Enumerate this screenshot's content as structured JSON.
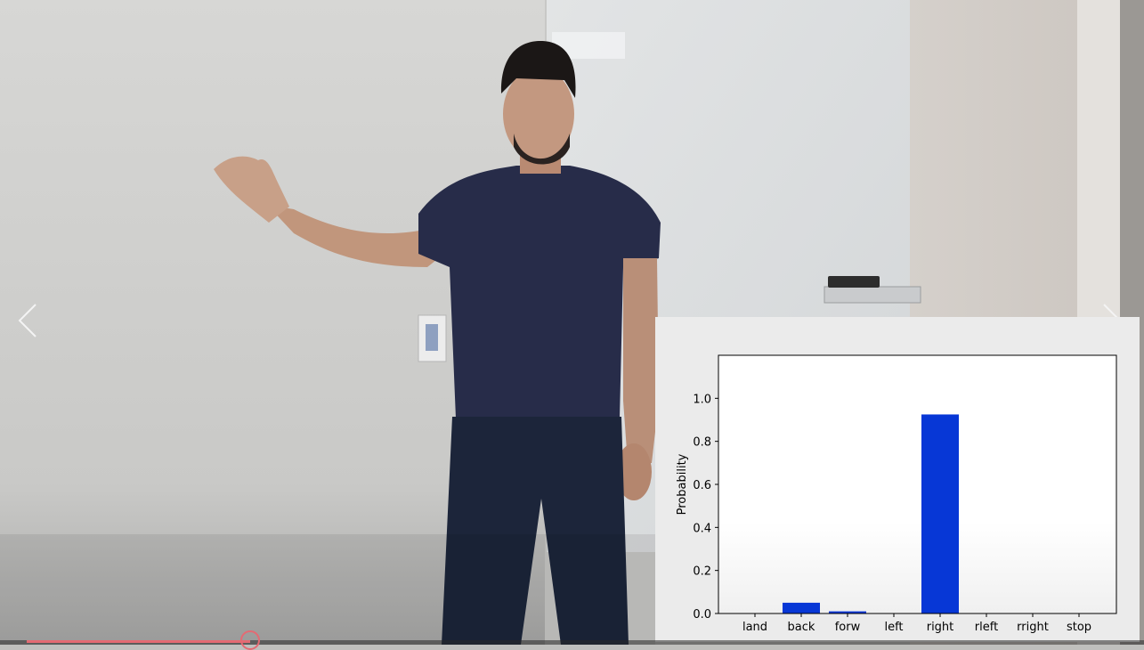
{
  "viewer": {
    "prev_icon": "chevron-left-icon",
    "next_icon": "chevron-right-icon",
    "progress": 0.205
  },
  "colors": {
    "bar": "#0737d6",
    "progress": "#e46a73"
  },
  "chart_data": {
    "type": "bar",
    "categories": [
      "land",
      "back",
      "forw",
      "left",
      "right",
      "rleft",
      "rright",
      "stop"
    ],
    "values": [
      0.0,
      0.05,
      0.01,
      0.0,
      0.925,
      0.0,
      0.0,
      0.0
    ],
    "title": "",
    "xlabel": "",
    "ylabel": "Probability",
    "ylim": [
      0,
      1.2
    ],
    "yticks": [
      "0.0",
      "0.2",
      "0.4",
      "0.6",
      "0.8",
      "1.0"
    ],
    "grid": false,
    "legend": "none"
  }
}
